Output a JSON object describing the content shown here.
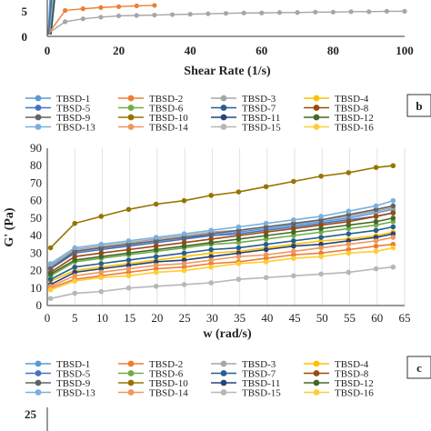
{
  "panel_top": {
    "xlabel": "Shear Rate (1/s)",
    "x_ticks": [
      "0",
      "20",
      "40",
      "60",
      "80",
      "100"
    ],
    "y_ticks_visible": [
      "0",
      "5"
    ],
    "visible_series": [
      {
        "name": "TBSD-15",
        "color": "#a6a6a6",
        "x": [
          5,
          10,
          15,
          20,
          25,
          30,
          35,
          40,
          45,
          50,
          55,
          60,
          65,
          70,
          75,
          80,
          85,
          90,
          95,
          100
        ],
        "y": [
          3.5,
          4.2,
          4.6,
          4.9,
          5.0,
          5.1,
          5.2,
          5.3,
          5.4,
          5.5,
          5.6,
          5.6,
          5.7,
          5.7,
          5.8,
          5.8,
          5.9,
          5.9,
          6.0,
          6.0
        ]
      },
      {
        "name": "TBSD-2",
        "color": "#ed7d31",
        "x": [
          5,
          10,
          15,
          20,
          25,
          30
        ],
        "y": [
          6.2,
          6.6,
          6.9,
          7.1,
          7.3,
          7.4
        ]
      }
    ]
  },
  "legend": {
    "entries": [
      {
        "name": "TBSD-1",
        "color": "#5b9bd5"
      },
      {
        "name": "TBSD-2",
        "color": "#ed7d31"
      },
      {
        "name": "TBSD-3",
        "color": "#a5a5a5"
      },
      {
        "name": "TBSD-4",
        "color": "#ffc000"
      },
      {
        "name": "TBSD-5",
        "color": "#4472c4"
      },
      {
        "name": "TBSD-6",
        "color": "#70ad47"
      },
      {
        "name": "TBSD-7",
        "color": "#255e91"
      },
      {
        "name": "TBSD-8",
        "color": "#9e480e"
      },
      {
        "name": "TBSD-9",
        "color": "#636363"
      },
      {
        "name": "TBSD-10",
        "color": "#997300"
      },
      {
        "name": "TBSD-11",
        "color": "#264478"
      },
      {
        "name": "TBSD-12",
        "color": "#43682b"
      },
      {
        "name": "TBSD-13",
        "color": "#7cafdd"
      },
      {
        "name": "TBSD-14",
        "color": "#f1975a"
      },
      {
        "name": "TBSD-15",
        "color": "#b7b7b7"
      },
      {
        "name": "TBSD-16",
        "color": "#ffcd33"
      }
    ]
  },
  "panel_labels": {
    "b": "b",
    "c": "c"
  },
  "chart_data": {
    "type": "line",
    "xlabel": "w (rad/s)",
    "ylabel": "G' (Pa)",
    "xlim": [
      0,
      65
    ],
    "ylim": [
      0,
      90
    ],
    "x_ticks": [
      "0",
      "5",
      "10",
      "15",
      "20",
      "25",
      "30",
      "35",
      "40",
      "45",
      "50",
      "55",
      "60",
      "65"
    ],
    "y_ticks": [
      "0",
      "10",
      "20",
      "30",
      "40",
      "50",
      "60",
      "70",
      "80",
      "90"
    ],
    "x": [
      0.6,
      5,
      9.8,
      14.8,
      19.8,
      24.9,
      29.8,
      34.8,
      39.8,
      44.8,
      49.8,
      54.8,
      59.8,
      62.9
    ],
    "series": [
      {
        "name": "TBSD-1",
        "color": "#5b9bd5",
        "values": [
          22,
          31,
          33,
          35,
          37,
          39,
          40,
          42,
          44,
          46,
          48,
          50,
          53,
          55
        ]
      },
      {
        "name": "TBSD-2",
        "color": "#ed7d31",
        "values": [
          10,
          15,
          17,
          19,
          21,
          22,
          24,
          25,
          27,
          29,
          30,
          32,
          34,
          35
        ]
      },
      {
        "name": "TBSD-3",
        "color": "#a5a5a5",
        "values": [
          23,
          32,
          34,
          36,
          38,
          40,
          42,
          43,
          45,
          47,
          49,
          51,
          54,
          56
        ]
      },
      {
        "name": "TBSD-4",
        "color": "#ffc000",
        "values": [
          14,
          20,
          22,
          24,
          26,
          28,
          30,
          31,
          33,
          35,
          37,
          38,
          40,
          42
        ]
      },
      {
        "name": "TBSD-5",
        "color": "#4472c4",
        "values": [
          21,
          30,
          32,
          34,
          36,
          38,
          40,
          41,
          43,
          45,
          47,
          49,
          51,
          53
        ]
      },
      {
        "name": "TBSD-6",
        "color": "#70ad47",
        "values": [
          17,
          25,
          27,
          29,
          31,
          33,
          35,
          36,
          38,
          40,
          42,
          44,
          46,
          48
        ]
      },
      {
        "name": "TBSD-7",
        "color": "#255e91",
        "values": [
          15,
          22,
          24,
          26,
          28,
          30,
          32,
          33,
          35,
          37,
          39,
          41,
          43,
          45
        ]
      },
      {
        "name": "TBSD-8",
        "color": "#9e480e",
        "values": [
          19,
          28,
          30,
          32,
          34,
          36,
          38,
          40,
          42,
          44,
          46,
          48,
          51,
          53
        ]
      },
      {
        "name": "TBSD-9",
        "color": "#636363",
        "values": [
          21,
          31,
          33,
          35,
          37,
          39,
          41,
          43,
          45,
          47,
          49,
          52,
          55,
          57
        ]
      },
      {
        "name": "TBSD-10",
        "color": "#997300",
        "values": [
          33,
          47,
          51,
          55,
          58,
          60,
          63,
          65,
          68,
          71,
          74,
          76,
          79,
          80
        ]
      },
      {
        "name": "TBSD-11",
        "color": "#264478",
        "values": [
          12,
          19,
          21,
          23,
          25,
          26,
          28,
          30,
          32,
          34,
          35,
          37,
          39,
          41
        ]
      },
      {
        "name": "TBSD-12",
        "color": "#43682b",
        "values": [
          18,
          26,
          28,
          30,
          32,
          34,
          36,
          38,
          40,
          42,
          44,
          46,
          48,
          50
        ]
      },
      {
        "name": "TBSD-13",
        "color": "#7cafdd",
        "values": [
          24,
          33,
          35,
          37,
          39,
          41,
          43,
          45,
          47,
          49,
          51,
          54,
          57,
          60
        ]
      },
      {
        "name": "TBSD-14",
        "color": "#f1975a",
        "values": [
          11,
          17,
          19,
          21,
          23,
          24,
          26,
          28,
          29,
          31,
          33,
          35,
          37,
          39
        ]
      },
      {
        "name": "TBSD-15",
        "color": "#b7b7b7",
        "values": [
          4,
          7,
          8,
          10,
          11,
          12,
          13,
          15,
          16,
          17,
          18,
          19,
          21,
          22
        ]
      },
      {
        "name": "TBSD-16",
        "color": "#ffcd33",
        "values": [
          9,
          14,
          16,
          17,
          19,
          20,
          22,
          24,
          25,
          27,
          28,
          30,
          31,
          33
        ]
      }
    ]
  },
  "bottom_panel": {
    "y_tick_visible": "25"
  }
}
